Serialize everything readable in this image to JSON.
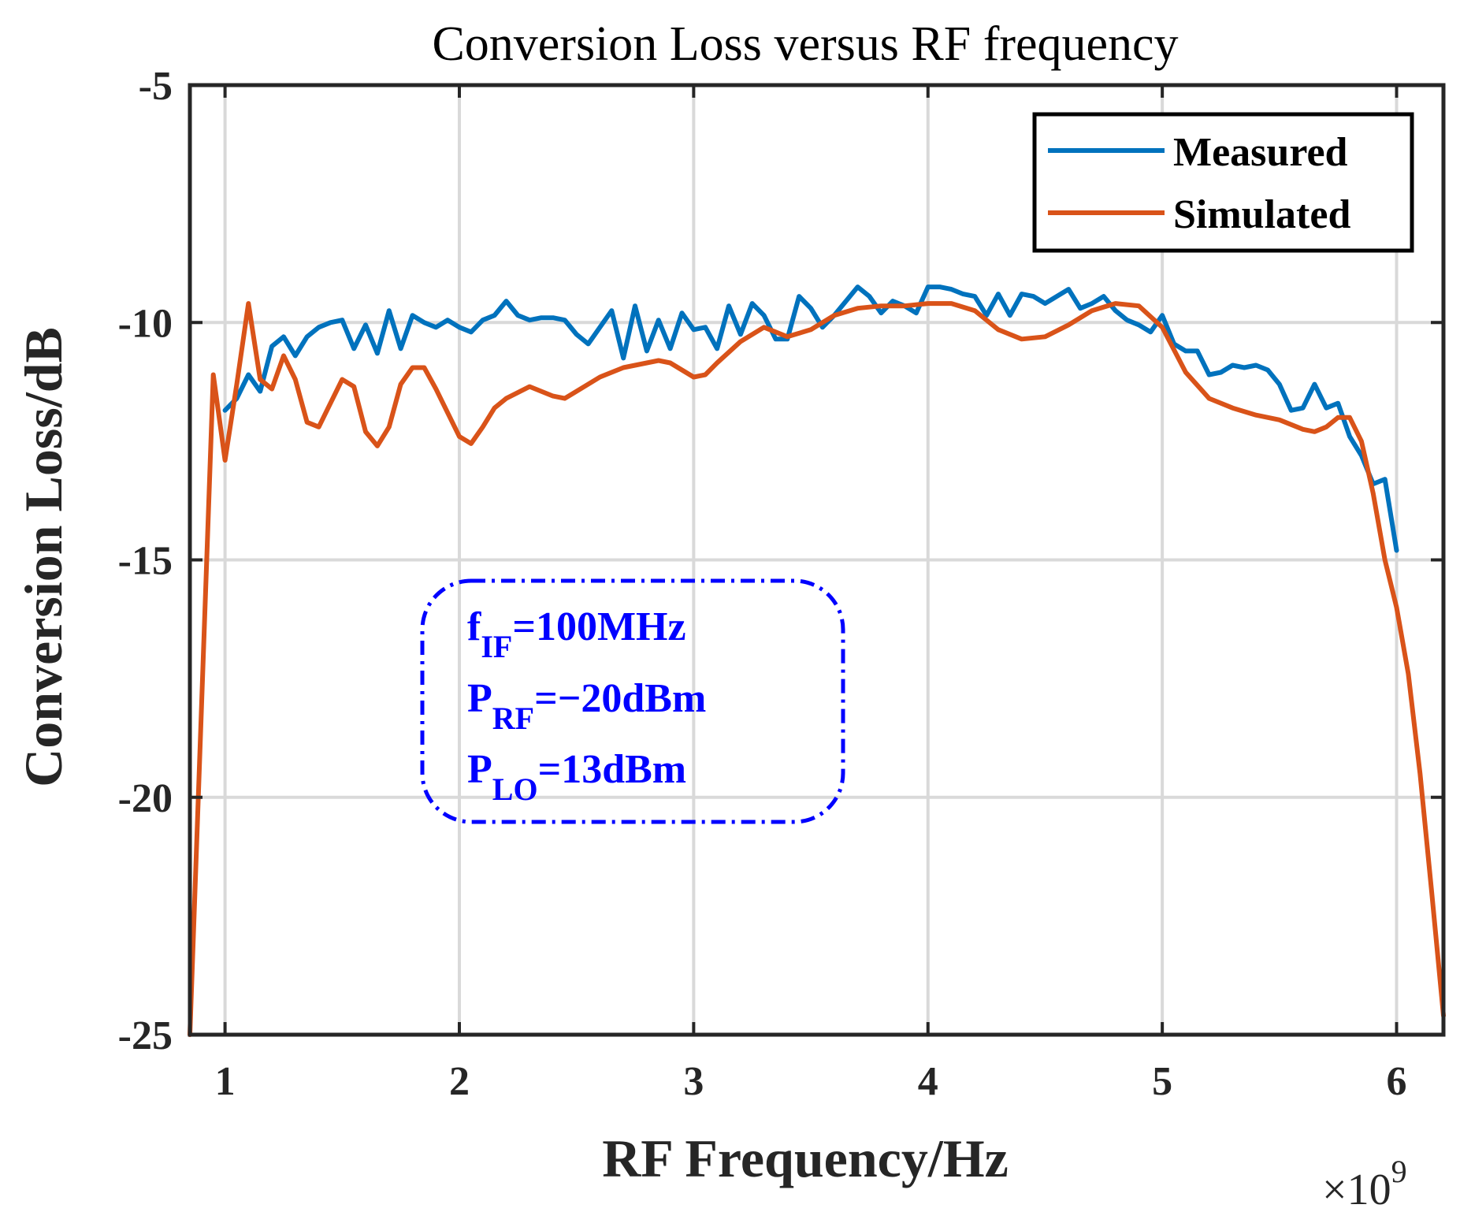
{
  "chart_data": {
    "type": "line",
    "title": "Conversion Loss versus RF frequency",
    "xlabel": "RF Frequency/Hz",
    "ylabel": "Conversion Loss/dB",
    "x_exponent": {
      "base": "×10",
      "power": "9"
    },
    "xlim": [
      0.85,
      6.2
    ],
    "ylim": [
      -25,
      -5
    ],
    "xticks": [
      1,
      2,
      3,
      4,
      5,
      6
    ],
    "xtick_labels": [
      "1",
      "2",
      "3",
      "4",
      "5",
      "6"
    ],
    "yticks": [
      -25,
      -20,
      -15,
      -10,
      -5
    ],
    "ytick_labels": [
      "-25",
      "-20",
      "-15",
      "-10",
      "-5"
    ],
    "grid": true,
    "legend_position": "top-right",
    "annotation": [
      {
        "main": "f",
        "sub": "IF",
        "rest": "=100MHz"
      },
      {
        "main": "P",
        "sub": "RF",
        "rest": "=−20dBm"
      },
      {
        "main": "P",
        "sub": "LO",
        "rest": "=13dBm"
      }
    ],
    "series": [
      {
        "name": "Measured",
        "color": "#0072BD",
        "x": [
          1.0,
          1.05,
          1.1,
          1.15,
          1.2,
          1.25,
          1.3,
          1.35,
          1.4,
          1.45,
          1.5,
          1.55,
          1.6,
          1.65,
          1.7,
          1.75,
          1.8,
          1.85,
          1.9,
          1.95,
          2.0,
          2.05,
          2.1,
          2.15,
          2.2,
          2.25,
          2.3,
          2.35,
          2.4,
          2.45,
          2.5,
          2.55,
          2.6,
          2.65,
          2.7,
          2.75,
          2.8,
          2.85,
          2.9,
          2.95,
          3.0,
          3.05,
          3.1,
          3.15,
          3.2,
          3.25,
          3.3,
          3.35,
          3.4,
          3.45,
          3.5,
          3.55,
          3.6,
          3.65,
          3.7,
          3.75,
          3.8,
          3.85,
          3.9,
          3.95,
          4.0,
          4.05,
          4.1,
          4.15,
          4.2,
          4.25,
          4.3,
          4.35,
          4.4,
          4.45,
          4.5,
          4.55,
          4.6,
          4.65,
          4.7,
          4.75,
          4.8,
          4.85,
          4.9,
          4.95,
          5.0,
          5.05,
          5.1,
          5.15,
          5.2,
          5.25,
          5.3,
          5.35,
          5.4,
          5.45,
          5.5,
          5.55,
          5.6,
          5.65,
          5.7,
          5.75,
          5.8,
          5.85,
          5.9,
          5.95,
          6.0
        ],
        "values": [
          -11.85,
          -11.6,
          -11.1,
          -11.45,
          -10.5,
          -10.3,
          -10.7,
          -10.3,
          -10.1,
          -10.0,
          -9.95,
          -10.55,
          -10.05,
          -10.65,
          -9.75,
          -10.55,
          -9.85,
          -10.0,
          -10.1,
          -9.95,
          -10.1,
          -10.2,
          -9.95,
          -9.85,
          -9.55,
          -9.85,
          -9.95,
          -9.9,
          -9.9,
          -9.95,
          -10.25,
          -10.45,
          -10.1,
          -9.75,
          -10.75,
          -9.65,
          -10.6,
          -9.95,
          -10.55,
          -9.8,
          -10.15,
          -10.1,
          -10.55,
          -9.65,
          -10.25,
          -9.6,
          -9.85,
          -10.35,
          -10.35,
          -9.45,
          -9.7,
          -10.1,
          -9.85,
          -9.55,
          -9.25,
          -9.45,
          -9.8,
          -9.55,
          -9.65,
          -9.8,
          -9.25,
          -9.25,
          -9.3,
          -9.4,
          -9.45,
          -9.85,
          -9.4,
          -9.85,
          -9.4,
          -9.45,
          -9.6,
          -9.45,
          -9.3,
          -9.7,
          -9.6,
          -9.45,
          -9.75,
          -9.95,
          -10.05,
          -10.2,
          -9.85,
          -10.45,
          -10.6,
          -10.6,
          -11.1,
          -11.05,
          -10.9,
          -10.95,
          -10.9,
          -11.0,
          -11.3,
          -11.85,
          -11.8,
          -11.3,
          -11.8,
          -11.7,
          -12.4,
          -12.8,
          -13.4,
          -13.3,
          -14.8
        ]
      },
      {
        "name": "Simulated",
        "color": "#D95319",
        "x": [
          0.85,
          0.95,
          1.0,
          1.05,
          1.1,
          1.15,
          1.2,
          1.25,
          1.3,
          1.35,
          1.4,
          1.45,
          1.5,
          1.55,
          1.6,
          1.65,
          1.7,
          1.75,
          1.8,
          1.85,
          1.9,
          1.95,
          2.0,
          2.05,
          2.1,
          2.15,
          2.2,
          2.3,
          2.4,
          2.45,
          2.5,
          2.6,
          2.7,
          2.8,
          2.85,
          2.9,
          3.0,
          3.05,
          3.1,
          3.2,
          3.3,
          3.4,
          3.5,
          3.6,
          3.7,
          3.8,
          3.9,
          4.0,
          4.1,
          4.2,
          4.3,
          4.4,
          4.5,
          4.6,
          4.7,
          4.8,
          4.9,
          5.0,
          5.1,
          5.2,
          5.3,
          5.4,
          5.5,
          5.6,
          5.65,
          5.7,
          5.75,
          5.8,
          5.85,
          5.9,
          5.95,
          6.0,
          6.05,
          6.1,
          6.15,
          6.2
        ],
        "values": [
          -25.0,
          -11.1,
          -12.9,
          -11.3,
          -9.6,
          -11.2,
          -11.4,
          -10.7,
          -11.2,
          -12.1,
          -12.2,
          -11.7,
          -11.2,
          -11.35,
          -12.3,
          -12.6,
          -12.2,
          -11.3,
          -10.95,
          -10.95,
          -11.4,
          -11.9,
          -12.4,
          -12.55,
          -12.2,
          -11.8,
          -11.6,
          -11.35,
          -11.55,
          -11.6,
          -11.45,
          -11.15,
          -10.95,
          -10.85,
          -10.8,
          -10.85,
          -11.15,
          -11.1,
          -10.85,
          -10.4,
          -10.1,
          -10.3,
          -10.15,
          -9.85,
          -9.7,
          -9.65,
          -9.65,
          -9.6,
          -9.6,
          -9.75,
          -10.15,
          -10.35,
          -10.3,
          -10.05,
          -9.75,
          -9.6,
          -9.65,
          -10.1,
          -11.05,
          -11.6,
          -11.8,
          -11.95,
          -12.05,
          -12.25,
          -12.3,
          -12.2,
          -12.0,
          -12.0,
          -12.5,
          -13.6,
          -15.0,
          -16.0,
          -17.4,
          -19.5,
          -22.0,
          -24.6
        ]
      }
    ]
  }
}
